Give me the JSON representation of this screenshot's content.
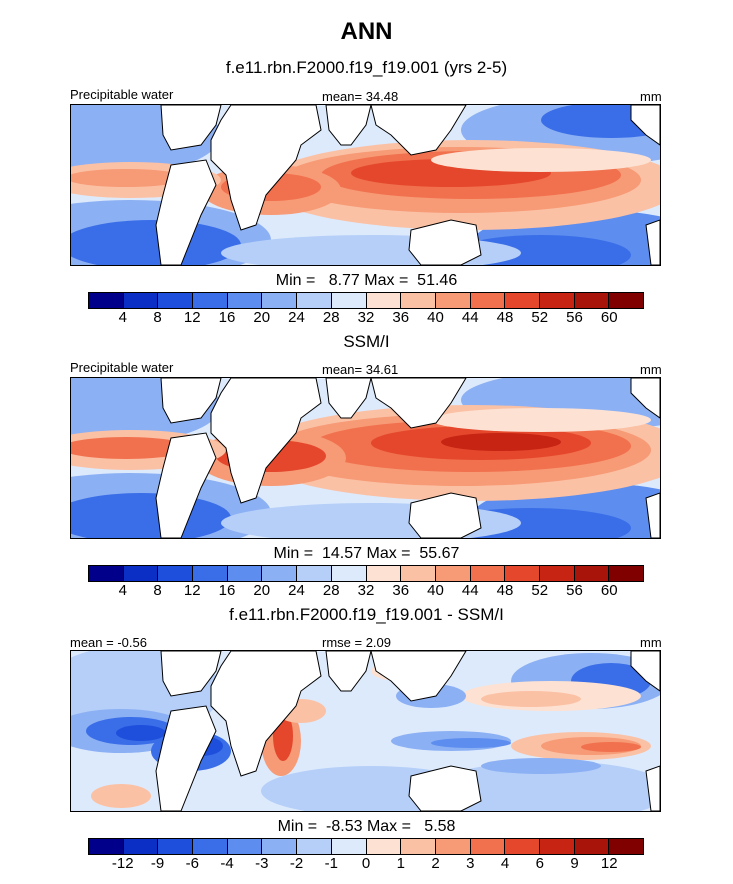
{
  "title": "ANN",
  "panels": [
    {
      "subtitle": "f.e11.rbn.F2000.f19_f19.001 (yrs 2-5)",
      "left_label": "Precipitable water",
      "center_label": "mean=  34.48",
      "right_label": "mm",
      "minmax": "Min =   8.77 Max =  51.46",
      "colorbar_ticks": [
        "4",
        "8",
        "12",
        "16",
        "20",
        "24",
        "28",
        "32",
        "36",
        "40",
        "44",
        "48",
        "52",
        "56",
        "60"
      ],
      "field_mean": 34.48
    },
    {
      "subtitle": "SSM/I",
      "left_label": "Precipitable water",
      "center_label": "mean=  34.61",
      "right_label": "mm",
      "minmax": "Min =  14.57 Max =  55.67",
      "colorbar_ticks": [
        "4",
        "8",
        "12",
        "16",
        "20",
        "24",
        "28",
        "32",
        "36",
        "40",
        "44",
        "48",
        "52",
        "56",
        "60"
      ],
      "field_mean": 34.61
    },
    {
      "subtitle": "f.e11.rbn.F2000.f19_f19.001 - SSM/I",
      "left_label": "mean =  -0.56",
      "center_label": "rmse =   2.09",
      "right_label": "mm",
      "minmax": "Min =  -8.53 Max =   5.58",
      "colorbar_ticks": [
        "-12",
        "-9",
        "-6",
        "-4",
        "-3",
        "-2",
        "-1",
        "0",
        "1",
        "2",
        "3",
        "4",
        "6",
        "9",
        "12"
      ],
      "field_mean": -0.56
    }
  ],
  "palette": [
    "#00008b",
    "#0b2fc4",
    "#1e4fdc",
    "#3a6ee8",
    "#5d8def",
    "#8cb0f4",
    "#b5cff8",
    "#ddeafc",
    "#fde2d3",
    "#fbc1a5",
    "#f79a76",
    "#f1704d",
    "#e4472c",
    "#c72414",
    "#a8140a",
    "#800000"
  ]
}
